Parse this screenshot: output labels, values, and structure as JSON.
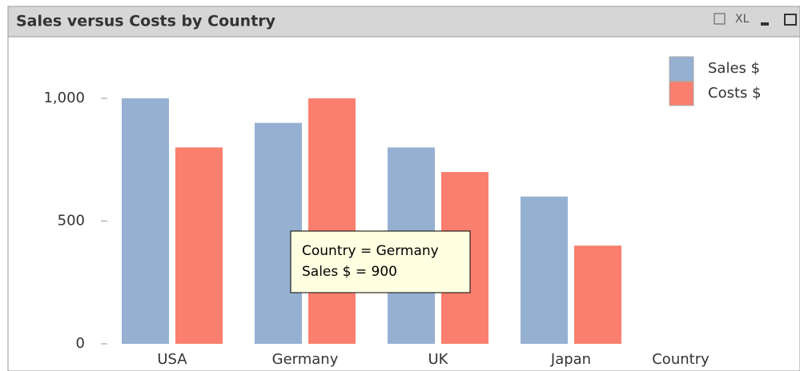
{
  "chart_data": {
    "type": "bar",
    "title": "Sales versus Costs by Country",
    "categories": [
      "USA",
      "Germany",
      "UK",
      "Japan"
    ],
    "x_label": "Country",
    "series": [
      {
        "name": "Sales $",
        "color": "#95b0d1",
        "values": [
          1000,
          900,
          800,
          600
        ]
      },
      {
        "name": "Costs $",
        "color": "#fa7f6f",
        "values": [
          800,
          1000,
          700,
          400
        ]
      }
    ],
    "ylim": [
      0,
      1000
    ],
    "yticks": [
      0,
      500,
      {
        "value": 1000,
        "label": "1,000"
      }
    ],
    "legend": "top-right",
    "tooltip": [
      "Country = Germany",
      "Sales $ = 900"
    ]
  },
  "toolbar": [
    "XL"
  ]
}
